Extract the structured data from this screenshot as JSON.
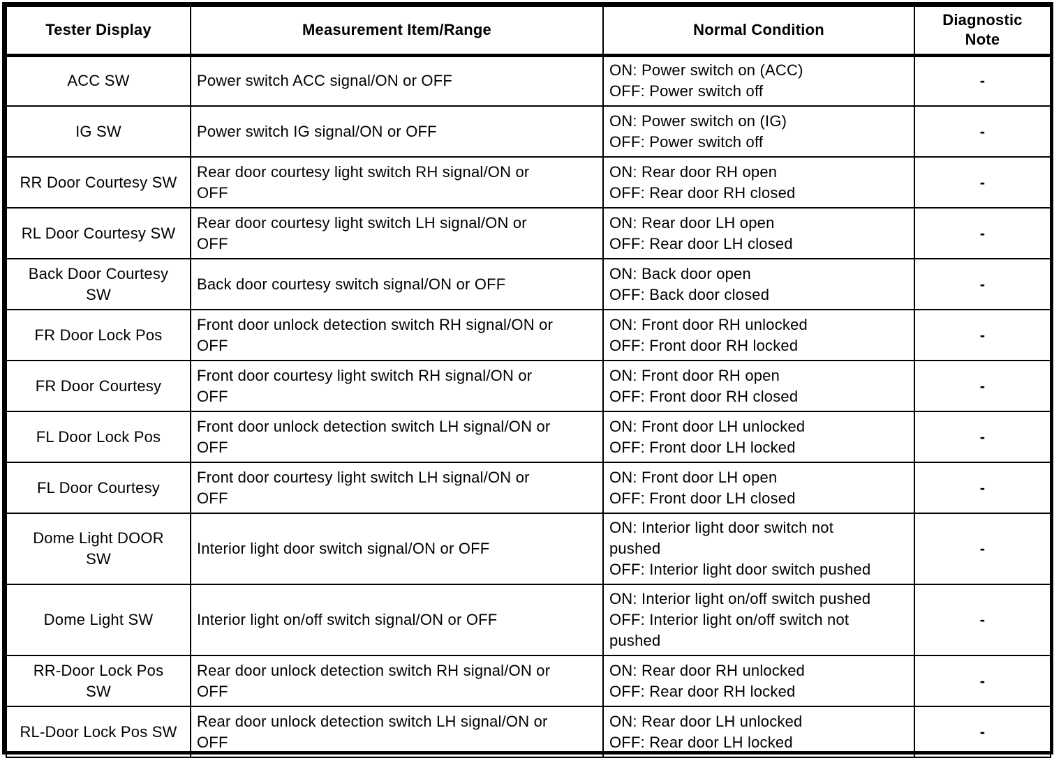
{
  "table": {
    "columns": {
      "tester_display": "Tester Display",
      "measurement_item_range": "Measurement Item/Range",
      "normal_condition": "Normal Condition",
      "diagnostic_note": "Diagnostic\nNote"
    },
    "rows": [
      {
        "tester_display": "ACC SW",
        "measurement_item_range": "Power switch ACC signal/ON or OFF",
        "normal_condition": "ON: Power switch on (ACC)\nOFF: Power switch off",
        "diagnostic_note": "-"
      },
      {
        "tester_display": "IG SW",
        "measurement_item_range": "Power switch IG signal/ON or OFF",
        "normal_condition": "ON: Power switch on (IG)\nOFF: Power switch off",
        "diagnostic_note": "-"
      },
      {
        "tester_display": "RR Door Courtesy SW",
        "measurement_item_range": "Rear door courtesy light switch RH signal/ON or\nOFF",
        "normal_condition": "ON: Rear door RH open\nOFF: Rear door RH closed",
        "diagnostic_note": "-"
      },
      {
        "tester_display": "RL Door Courtesy SW",
        "measurement_item_range": "Rear door courtesy light switch LH signal/ON or\nOFF",
        "normal_condition": "ON: Rear door LH open\nOFF: Rear door LH closed",
        "diagnostic_note": "-"
      },
      {
        "tester_display": "Back Door Courtesy\nSW",
        "measurement_item_range": "Back door courtesy switch signal/ON or OFF",
        "normal_condition": "ON: Back door open\nOFF: Back door closed",
        "diagnostic_note": "-"
      },
      {
        "tester_display": "FR Door Lock Pos",
        "measurement_item_range": "Front door unlock detection switch RH signal/ON or\nOFF",
        "normal_condition": "ON: Front door RH unlocked\nOFF: Front door RH locked",
        "diagnostic_note": "-"
      },
      {
        "tester_display": "FR Door Courtesy",
        "measurement_item_range": "Front door courtesy light switch RH signal/ON or\nOFF",
        "normal_condition": "ON: Front door RH open\nOFF: Front door RH closed",
        "diagnostic_note": "-"
      },
      {
        "tester_display": "FL Door Lock Pos",
        "measurement_item_range": "Front door unlock detection switch LH signal/ON or\nOFF",
        "normal_condition": "ON: Front door LH unlocked\nOFF: Front door LH locked",
        "diagnostic_note": "-"
      },
      {
        "tester_display": "FL Door Courtesy",
        "measurement_item_range": "Front door courtesy light switch LH signal/ON or\nOFF",
        "normal_condition": "ON: Front door LH open\nOFF: Front door LH closed",
        "diagnostic_note": "-"
      },
      {
        "tester_display": "Dome Light DOOR\nSW",
        "measurement_item_range": "Interior light door switch signal/ON or OFF",
        "normal_condition": "ON: Interior light door switch not\npushed\nOFF: Interior light door switch pushed",
        "diagnostic_note": "-"
      },
      {
        "tester_display": "Dome Light SW",
        "measurement_item_range": "Interior light on/off switch signal/ON or OFF",
        "normal_condition": "ON: Interior light on/off switch pushed\nOFF: Interior light on/off switch not\npushed",
        "diagnostic_note": "-"
      },
      {
        "tester_display": "RR-Door Lock Pos\nSW",
        "measurement_item_range": "Rear door unlock detection switch RH signal/ON or\nOFF",
        "normal_condition": "ON: Rear door RH unlocked\nOFF: Rear door RH locked",
        "diagnostic_note": "-"
      },
      {
        "tester_display": "RL-Door Lock Pos SW",
        "measurement_item_range": "Rear door unlock detection switch LH signal/ON or\nOFF",
        "normal_condition": "ON: Rear door LH unlocked\nOFF: Rear door LH locked",
        "diagnostic_note": "-"
      }
    ]
  },
  "colors": {
    "border": "#000000",
    "text": "#000000",
    "background": "#ffffff"
  }
}
